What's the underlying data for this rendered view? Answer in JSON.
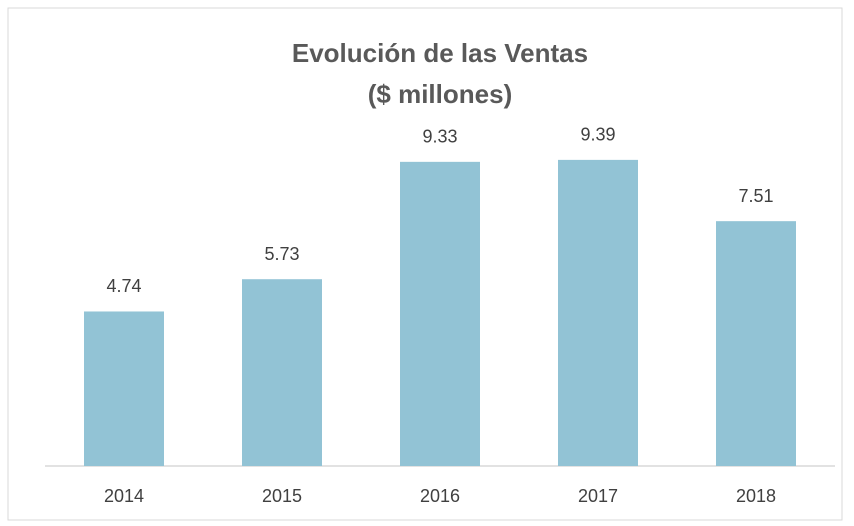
{
  "chart_data": {
    "type": "bar",
    "title": "Evolución de las Ventas",
    "subtitle": "($ millones)",
    "categories": [
      "2014",
      "2015",
      "2016",
      "2017",
      "2018"
    ],
    "values": [
      4.74,
      5.73,
      9.33,
      9.39,
      7.51
    ],
    "color": "#92c3d5",
    "ylim": [
      0,
      10
    ]
  }
}
